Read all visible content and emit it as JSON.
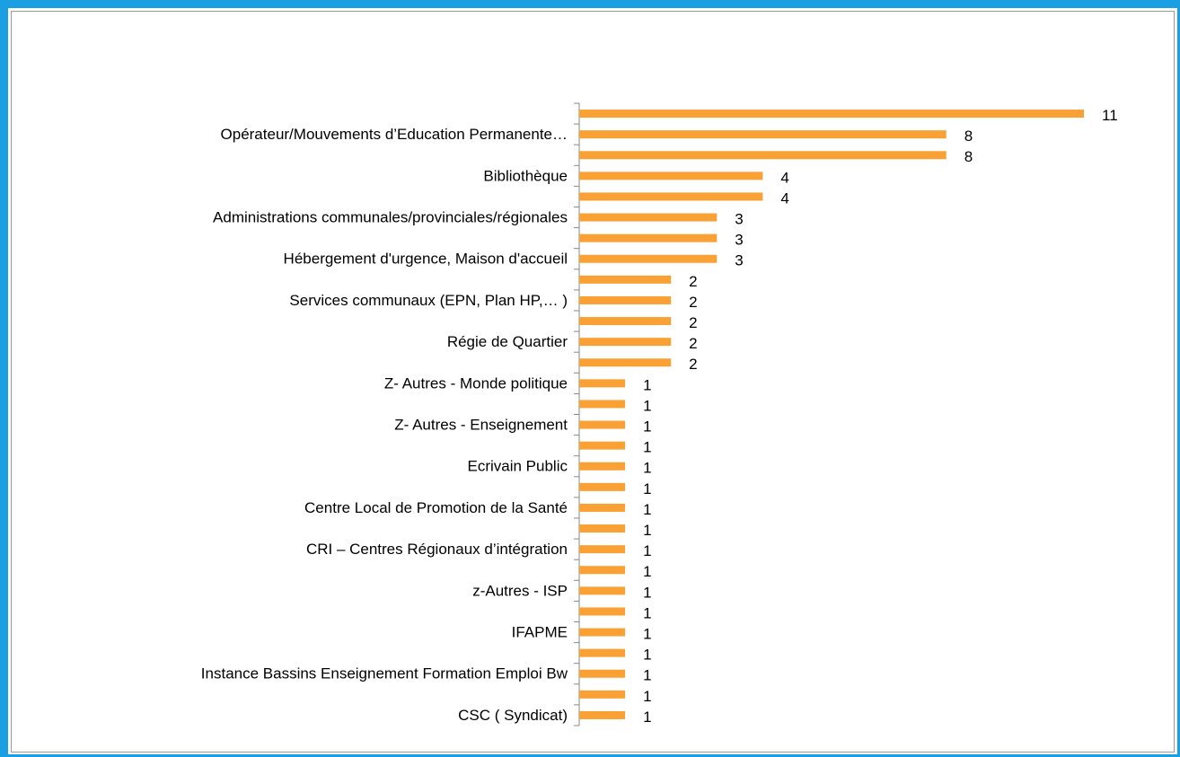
{
  "chart_data": {
    "type": "bar",
    "orientation": "horizontal",
    "color": "#f9a135",
    "categories": [
      null,
      "Opérateur/Mouvements  d’Education Permanente…",
      null,
      "Bibliothèque",
      null,
      "Administrations communales/provinciales/régionales",
      null,
      "Hébergement d'urgence, Maison d'accueil",
      null,
      "Services communaux (EPN,  Plan HP,… )",
      null,
      "Régie de Quartier",
      null,
      "Z- Autres - Monde politique",
      null,
      "Z- Autres - Enseignement",
      null,
      "Ecrivain Public",
      null,
      "Centre Local de Promotion de la Santé",
      null,
      "CRI – Centres Régionaux d’intégration",
      null,
      "z-Autres - ISP",
      null,
      "IFAPME",
      null,
      "Instance Bassins Enseignement Formation Emploi Bw",
      null,
      "CSC ( Syndicat)"
    ],
    "values": [
      11,
      8,
      8,
      4,
      4,
      3,
      3,
      3,
      2,
      2,
      2,
      2,
      2,
      1,
      1,
      1,
      1,
      1,
      1,
      1,
      1,
      1,
      1,
      1,
      1,
      1,
      1,
      1,
      1,
      1
    ]
  }
}
